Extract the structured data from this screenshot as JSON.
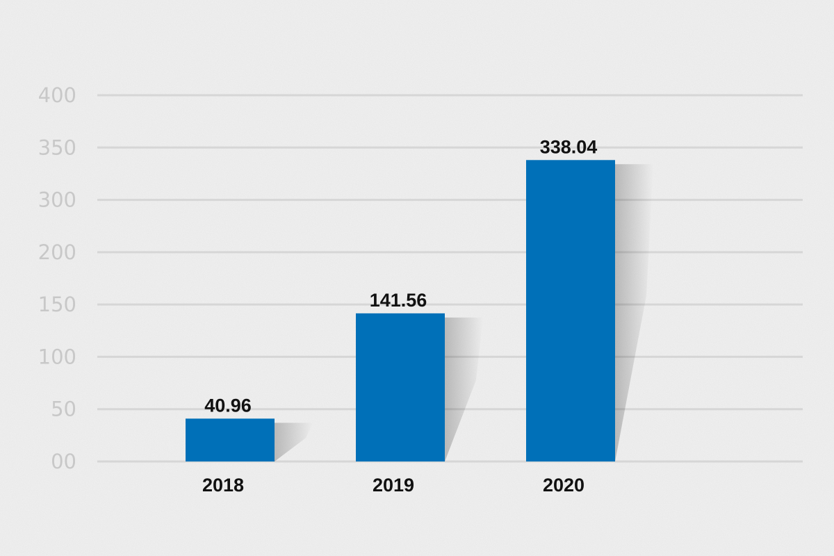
{
  "chart_data": {
    "type": "bar",
    "categories": [
      "2018",
      "2019",
      "2020"
    ],
    "values": [
      40.96,
      141.56,
      338.04
    ],
    "data_labels": [
      "40.96",
      "141.56",
      "338.04"
    ],
    "y_tick_labels": [
      "00",
      "50",
      "100",
      "150",
      "200",
      "300",
      "350",
      "400"
    ],
    "title": "",
    "xlabel": "",
    "ylabel": "",
    "grid": true,
    "legend": "none",
    "colors": {
      "bar": "#0070b8",
      "gridline": "#d6d6d6",
      "tick_label": "#c8c8c8",
      "data_label": "#111111",
      "background": "#f1f1f1"
    }
  }
}
